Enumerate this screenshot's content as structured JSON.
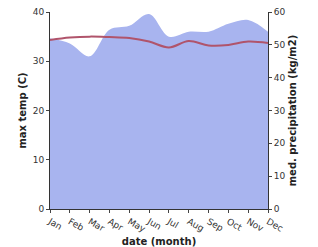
{
  "chart_data": {
    "type": "line",
    "categories": [
      "Jan",
      "Feb",
      "Mar",
      "Apr",
      "May",
      "Jun",
      "Jul",
      "Aug",
      "Sep",
      "Oct",
      "Nov",
      "Dec"
    ],
    "x_label": "date (month)",
    "y_label": "max temp (C)",
    "y2_label": "med. precipitation (kg/m2)",
    "series": [
      {
        "name": "med. precipitation",
        "type": "area",
        "axis": "y2",
        "color": "#a8b4ef",
        "values": [
          52,
          50.4,
          46.5,
          54.6,
          55.8,
          59.4,
          52.5,
          54,
          54,
          56.4,
          57.6,
          54
        ]
      },
      {
        "name": "max temp",
        "type": "line",
        "color": "#b0546b",
        "values": [
          34.3,
          34.8,
          35.0,
          34.9,
          34.7,
          34.0,
          32.8,
          34.1,
          33.2,
          33.3,
          34.0,
          33.7
        ]
      }
    ],
    "ylim": [
      0,
      40
    ],
    "yticks": [
      0,
      10,
      20,
      30,
      40
    ],
    "y2lim": [
      0,
      60
    ],
    "y2ticks": [
      0,
      10,
      20,
      30,
      40,
      50,
      60
    ],
    "grid": false
  }
}
